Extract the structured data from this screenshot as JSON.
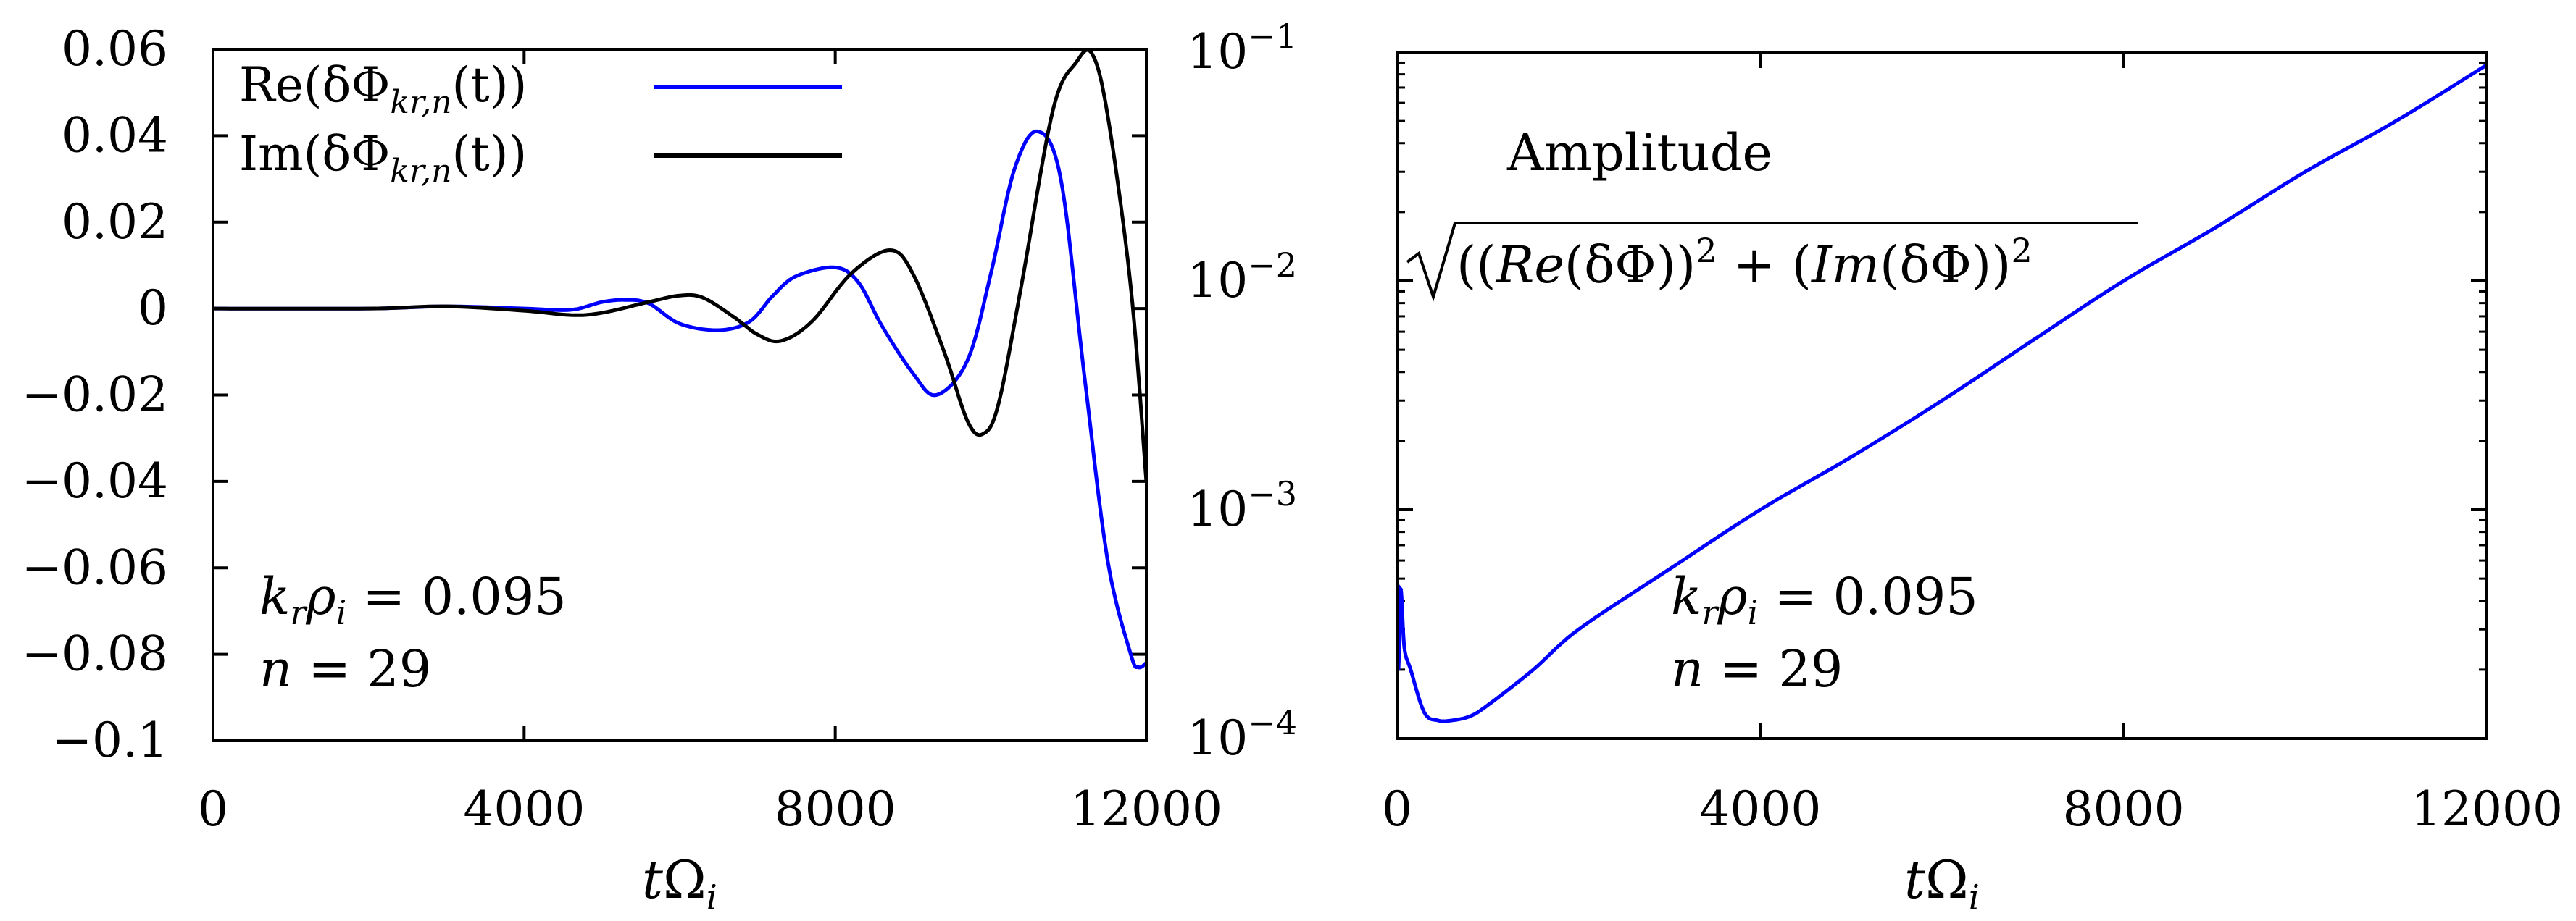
{
  "chart_data": [
    {
      "type": "line",
      "xlabel": "tΩ_i",
      "xlabel_main": "t",
      "xlabel_sym": "Ω",
      "xlabel_sub": "i",
      "xlim": [
        0,
        12000
      ],
      "ylim": [
        -0.1,
        0.06
      ],
      "x_ticks": [
        0,
        4000,
        8000,
        12000
      ],
      "x_tick_labels": [
        "0",
        "4000",
        "8000",
        "12000"
      ],
      "y_ticks": [
        -0.1,
        -0.08,
        -0.06,
        -0.04,
        -0.02,
        0,
        0.02,
        0.04,
        0.06
      ],
      "y_tick_labels": [
        "−0.1",
        "−0.08",
        "−0.06",
        "−0.04",
        "−0.02",
        "0",
        "0.02",
        "0.04",
        "0.06"
      ],
      "legend_position": "top-left",
      "annotations": [
        "k_r ρ_i = 0.095",
        "n = 29"
      ],
      "annotation_lines": {
        "kr": {
          "k": "k",
          "r": "r",
          "rho": "ρ",
          "i": "i",
          "rest": " = 0.095"
        },
        "n": {
          "n": "n",
          "rest": " = 29"
        }
      },
      "series": [
        {
          "name": "Re(δΦ_kr,n(t))",
          "label_prefix": "Re(δΦ",
          "label_sub": "kr,n",
          "label_suffix": "(t))",
          "color": "#0000ff",
          "x": [
            0,
            2000,
            3000,
            4000,
            4600,
            5000,
            5300,
            5600,
            6000,
            6500,
            6900,
            7200,
            7500,
            8000,
            8300,
            8600,
            9000,
            9300,
            9700,
            10000,
            10300,
            10600,
            10900,
            11200,
            11500,
            11800,
            11900,
            12000
          ],
          "y": [
            0,
            0,
            0.0005,
            0.0,
            -0.0003,
            0.0015,
            0.002,
            0.0012,
            -0.0035,
            -0.005,
            -0.003,
            0.003,
            0.0075,
            0.0095,
            0.006,
            -0.004,
            -0.015,
            -0.02,
            -0.012,
            0.008,
            0.032,
            0.041,
            0.03,
            -0.015,
            -0.058,
            -0.08,
            -0.083,
            -0.082
          ]
        },
        {
          "name": "Im(δΦ_kr,n(t))",
          "label_prefix": "Im(δΦ",
          "label_sub": "kr,n",
          "label_suffix": "(t))",
          "color": "#000000",
          "x": [
            0,
            2000,
            3000,
            4000,
            4600,
            5000,
            5600,
            6000,
            6300,
            6700,
            7000,
            7300,
            7700,
            8200,
            8700,
            9000,
            9400,
            9700,
            9900,
            10100,
            10400,
            10800,
            11100,
            11300,
            11500,
            11800,
            12000
          ],
          "y": [
            0,
            0,
            0.0005,
            -0.0005,
            -0.0015,
            -0.001,
            0.0015,
            0.003,
            0.0025,
            -0.002,
            -0.006,
            -0.0075,
            -0.003,
            0.008,
            0.0135,
            0.008,
            -0.01,
            -0.026,
            -0.029,
            -0.022,
            0.006,
            0.046,
            0.057,
            0.059,
            0.045,
            0.005,
            -0.04
          ]
        }
      ]
    },
    {
      "type": "line",
      "yscale": "log",
      "xlabel": "tΩ_i",
      "xlabel_main": "t",
      "xlabel_sym": "Ω",
      "xlabel_sub": "i",
      "xlim": [
        0,
        12000
      ],
      "ylim": [
        0.0001,
        0.1
      ],
      "x_ticks": [
        0,
        4000,
        8000,
        12000
      ],
      "x_tick_labels": [
        "0",
        "4000",
        "8000",
        "12000"
      ],
      "y_ticks": [
        0.0001,
        0.001,
        0.01,
        0.1
      ],
      "y_tick_labels": [
        {
          "base": "10",
          "exp": "−4"
        },
        {
          "base": "10",
          "exp": "−3"
        },
        {
          "base": "10",
          "exp": "−2"
        },
        {
          "base": "10",
          "exp": "−1"
        }
      ],
      "title_text": "Amplitude",
      "formula_parts": {
        "open": "((",
        "re": "Re",
        "mid1": "(δΦ))",
        "exp1": "2",
        "plus": " + (",
        "im": "Im",
        "mid2": "(δΦ))",
        "exp2": "2"
      },
      "annotations": [
        "k_r ρ_i = 0.095",
        "n = 29"
      ],
      "annotation_lines": {
        "kr": {
          "k": "k",
          "r": "r",
          "rho": "ρ",
          "i": "i",
          "rest": " = 0.095"
        },
        "n": {
          "n": "n",
          "rest": " = 29"
        }
      },
      "series": [
        {
          "name": "Amplitude",
          "color": "#0000ff",
          "x": [
            0,
            15,
            40,
            80,
            150,
            300,
            450,
            600,
            800,
            1000,
            1500,
            2000,
            3000,
            4000,
            5000,
            6000,
            7000,
            8000,
            9000,
            10000,
            11000,
            12000
          ],
          "y": [
            0.00045,
            0.0002,
            0.00045,
            0.00025,
            0.0002,
            0.00013,
            0.00012,
            0.00012,
            0.000125,
            0.00014,
            0.0002,
            0.0003,
            0.00055,
            0.001,
            0.0017,
            0.003,
            0.0055,
            0.01,
            0.017,
            0.03,
            0.05,
            0.088
          ]
        }
      ]
    }
  ]
}
